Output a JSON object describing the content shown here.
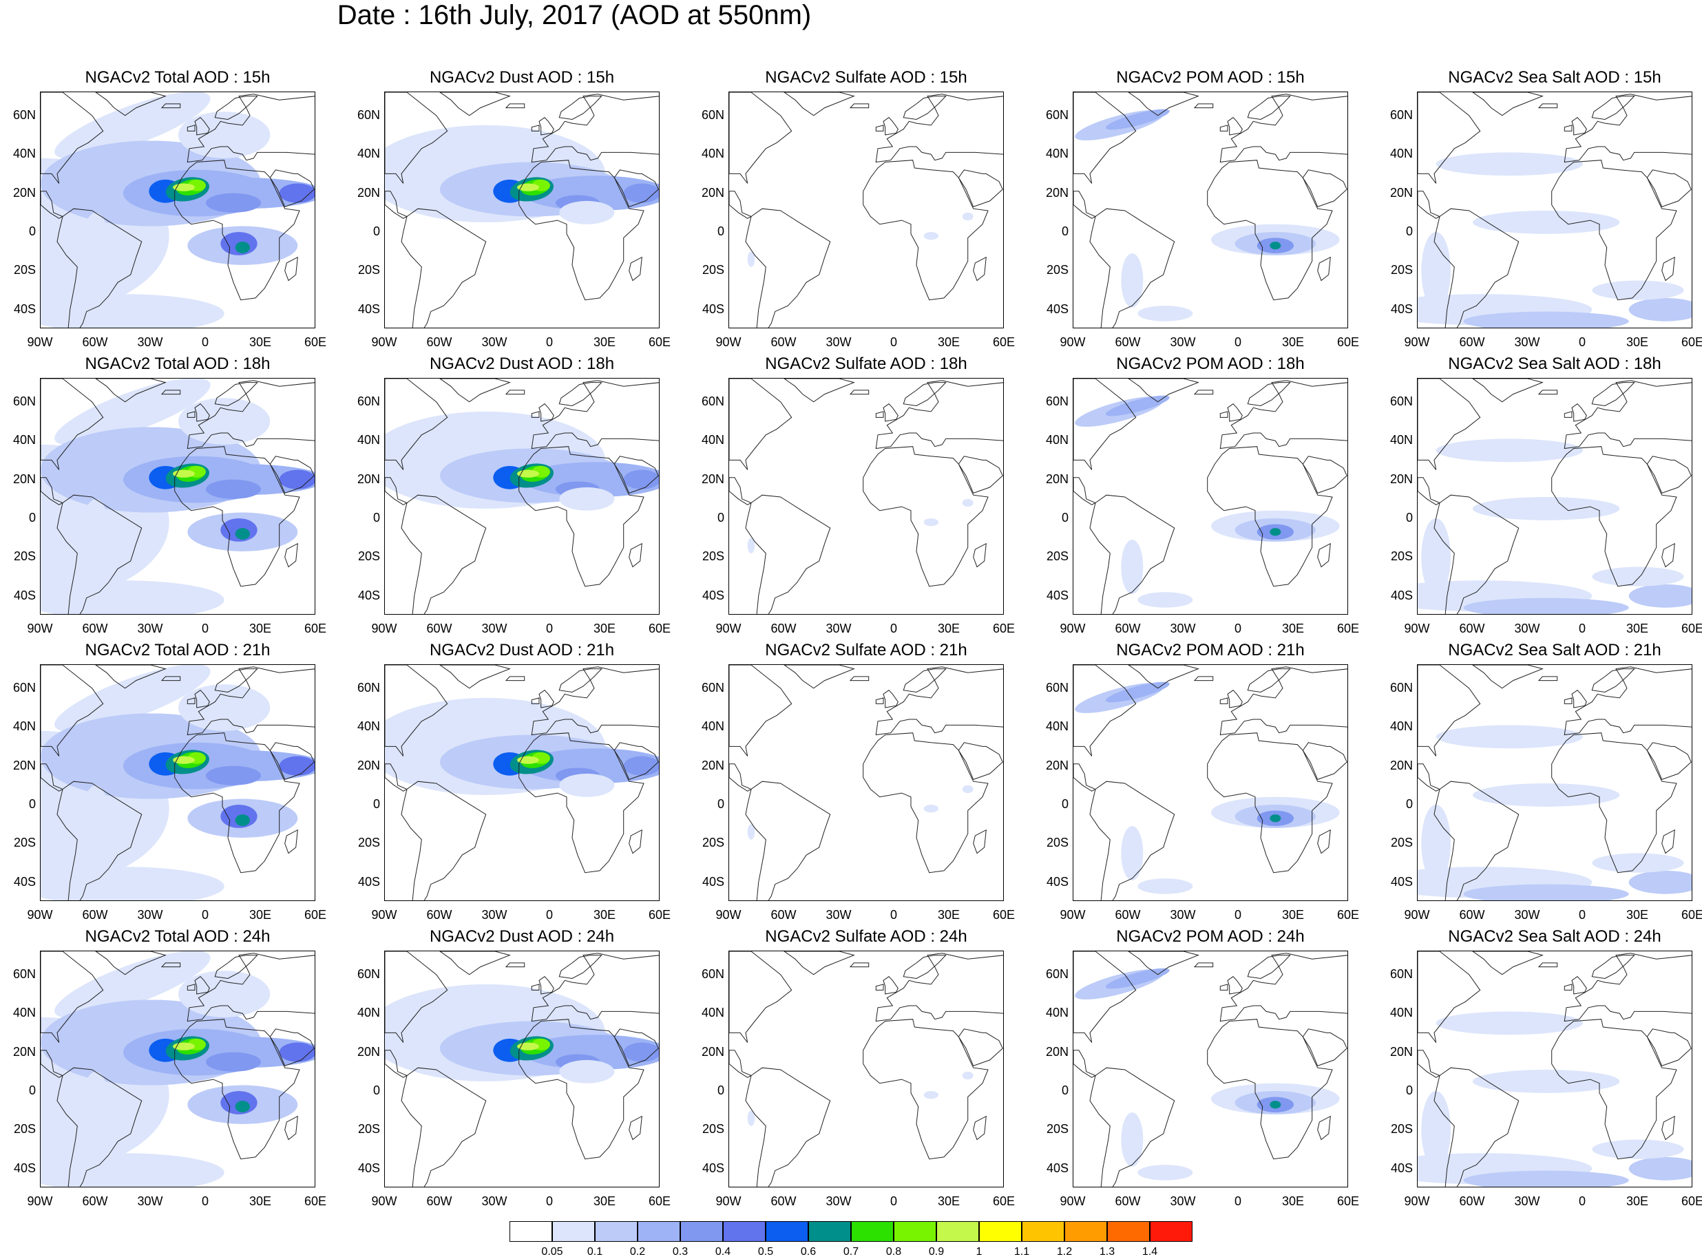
{
  "title": "Date : 16th July, 2017 (AOD at 550nm)",
  "lat_ticks": [
    "60N",
    "40N",
    "20N",
    "0",
    "20S",
    "40S"
  ],
  "lat_values": [
    60,
    40,
    20,
    0,
    -20,
    -40
  ],
  "lon_ticks": [
    "90W",
    "60W",
    "30W",
    "0",
    "30E",
    "60E"
  ],
  "lon_values": [
    -90,
    -60,
    -30,
    0,
    30,
    60
  ],
  "map_extent": {
    "lon": [
      -90,
      60
    ],
    "lat": [
      -50,
      72
    ]
  },
  "panels": [
    {
      "title": "NGACv2 Total AOD : 15h",
      "species": "total"
    },
    {
      "title": "NGACv2 Dust AOD : 15h",
      "species": "dust"
    },
    {
      "title": "NGACv2 Sulfate AOD : 15h",
      "species": "sulfate"
    },
    {
      "title": "NGACv2 POM AOD : 15h",
      "species": "pom"
    },
    {
      "title": "NGACv2 Sea Salt AOD : 15h",
      "species": "seasalt"
    },
    {
      "title": "NGACv2 Total AOD : 18h",
      "species": "total"
    },
    {
      "title": "NGACv2 Dust AOD : 18h",
      "species": "dust"
    },
    {
      "title": "NGACv2 Sulfate AOD : 18h",
      "species": "sulfate"
    },
    {
      "title": "NGACv2 POM AOD : 18h",
      "species": "pom"
    },
    {
      "title": "NGACv2 Sea Salt AOD : 18h",
      "species": "seasalt"
    },
    {
      "title": "NGACv2 Total AOD : 21h",
      "species": "total"
    },
    {
      "title": "NGACv2 Dust AOD : 21h",
      "species": "dust"
    },
    {
      "title": "NGACv2 Sulfate AOD : 21h",
      "species": "sulfate"
    },
    {
      "title": "NGACv2 POM AOD : 21h",
      "species": "pom"
    },
    {
      "title": "NGACv2 Sea Salt AOD : 21h",
      "species": "seasalt"
    },
    {
      "title": "NGACv2 Total AOD : 24h",
      "species": "total"
    },
    {
      "title": "NGACv2 Dust AOD : 24h",
      "species": "dust"
    },
    {
      "title": "NGACv2 Sulfate AOD : 24h",
      "species": "sulfate"
    },
    {
      "title": "NGACv2 POM AOD : 24h",
      "species": "pom"
    },
    {
      "title": "NGACv2 Sea Salt  AOD : 24h",
      "species": "seasalt"
    }
  ],
  "colorbar": {
    "labels": [
      "0.05",
      "0.1",
      "0.2",
      "0.3",
      "0.4",
      "0.5",
      "0.6",
      "0.7",
      "0.8",
      "0.9",
      "1",
      "1.1",
      "1.2",
      "1.3",
      "1.4"
    ],
    "colors": [
      "#ffffff",
      "#dce5fb",
      "#bccbf8",
      "#9db3f5",
      "#8098f0",
      "#6273ee",
      "#0b5ef0",
      "#008f8a",
      "#2ce000",
      "#78f400",
      "#c4f84a",
      "#ffff00",
      "#ffc400",
      "#ff9c00",
      "#ff6a00",
      "#ff1a0a"
    ]
  }
}
